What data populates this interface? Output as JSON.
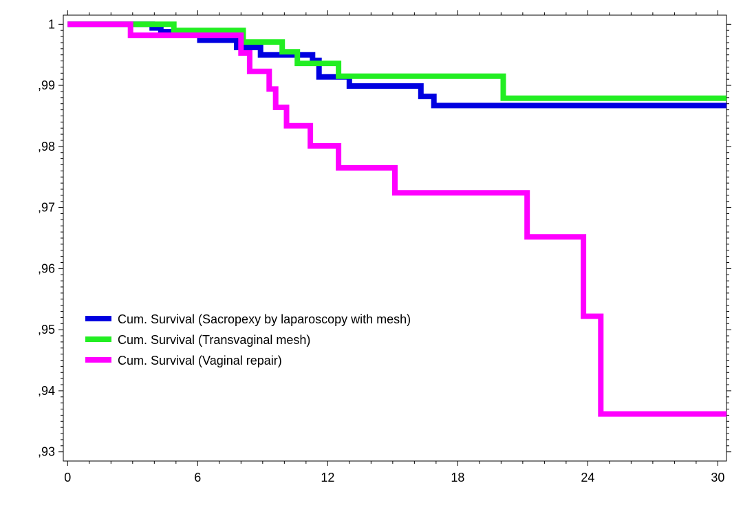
{
  "chart_data": {
    "type": "line",
    "step": true,
    "title": "",
    "xlabel": "",
    "ylabel": "",
    "xlim": [
      -0.2,
      30.4
    ],
    "ylim": [
      0.9285,
      1.0015
    ],
    "x_ticks": [
      {
        "value": 0,
        "label": "0"
      },
      {
        "value": 6,
        "label": "6"
      },
      {
        "value": 12,
        "label": "12"
      },
      {
        "value": 18,
        "label": "18"
      },
      {
        "value": 24,
        "label": "24"
      },
      {
        "value": 30,
        "label": "30"
      }
    ],
    "y_ticks": [
      {
        "value": 1.0,
        "label": "1"
      },
      {
        "value": 0.99,
        "label": ",99"
      },
      {
        "value": 0.98,
        "label": ",98"
      },
      {
        "value": 0.97,
        "label": ",97"
      },
      {
        "value": 0.96,
        "label": ",96"
      },
      {
        "value": 0.95,
        "label": ",95"
      },
      {
        "value": 0.94,
        "label": ",94"
      },
      {
        "value": 0.93,
        "label": ",93"
      }
    ],
    "grid": false,
    "legend_position": "lower-left",
    "series": [
      {
        "name": "Cum. Survival (Sacropexy by laparoscopy with mesh)",
        "color": "#0000e0",
        "points": [
          [
            0,
            1.0
          ],
          [
            3.9,
            0.9994
          ],
          [
            4.3,
            0.9988
          ],
          [
            6.1,
            0.9974
          ],
          [
            7.8,
            0.9962
          ],
          [
            8.9,
            0.995
          ],
          [
            11.3,
            0.9941
          ],
          [
            11.6,
            0.9914
          ],
          [
            13.0,
            0.9899
          ],
          [
            16.3,
            0.9882
          ],
          [
            16.9,
            0.9867
          ],
          [
            30.4,
            0.9867
          ]
        ]
      },
      {
        "name": "Cum. Survival (Transvaginal mesh)",
        "color": "#22ee22",
        "points": [
          [
            0,
            1.0
          ],
          [
            4.9,
            0.999
          ],
          [
            8.1,
            0.9971
          ],
          [
            9.9,
            0.9955
          ],
          [
            10.6,
            0.9936
          ],
          [
            12.5,
            0.9915
          ],
          [
            20.1,
            0.9879
          ],
          [
            30.4,
            0.9879
          ]
        ]
      },
      {
        "name": "Cum. Survival (Vaginal repair)",
        "color": "#ff00ff",
        "points": [
          [
            0,
            1.0
          ],
          [
            2.9,
            0.9982
          ],
          [
            8.0,
            0.9953
          ],
          [
            8.4,
            0.9923
          ],
          [
            9.3,
            0.9894
          ],
          [
            9.6,
            0.9864
          ],
          [
            10.1,
            0.9834
          ],
          [
            11.2,
            0.9801
          ],
          [
            12.5,
            0.9765
          ],
          [
            15.1,
            0.9724
          ],
          [
            21.2,
            0.9652
          ],
          [
            23.8,
            0.9522
          ],
          [
            24.6,
            0.9362
          ],
          [
            30.4,
            0.9362
          ]
        ]
      }
    ]
  }
}
